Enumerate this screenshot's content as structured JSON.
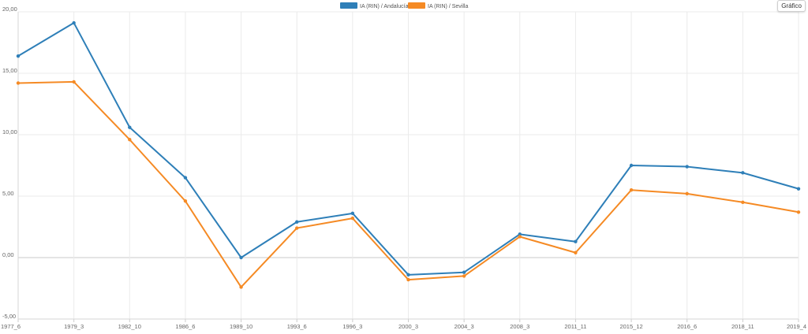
{
  "toolbar": {
    "chart_button_label": "Gráfico"
  },
  "chart_data": {
    "type": "line",
    "title": "",
    "xlabel": "",
    "ylabel": "",
    "categories": [
      "1977_6",
      "1979_3",
      "1982_10",
      "1986_6",
      "1989_10",
      "1993_6",
      "1996_3",
      "2000_3",
      "2004_3",
      "2008_3",
      "2011_11",
      "2015_12",
      "2016_6",
      "2018_11",
      "2019_4"
    ],
    "y_ticks": [
      "20,00",
      "15,00",
      "10,00",
      "5,00",
      "0,00",
      "-5,00"
    ],
    "ylim": [
      -5,
      20
    ],
    "grid": true,
    "legend_position": "top-center",
    "series": [
      {
        "name": "IA (RIN) / Andalucía",
        "color": "#2e7fb8",
        "values": [
          16.4,
          19.1,
          10.6,
          6.5,
          0.0,
          2.9,
          3.6,
          -1.4,
          -1.2,
          1.9,
          1.3,
          7.5,
          7.4,
          6.9,
          5.6
        ]
      },
      {
        "name": "IA (RIN) / Sevilla",
        "color": "#f58a24",
        "values": [
          14.2,
          14.3,
          9.6,
          4.6,
          -2.4,
          2.4,
          3.2,
          -1.8,
          -1.5,
          1.7,
          0.4,
          5.5,
          5.2,
          4.5,
          3.7
        ]
      }
    ]
  }
}
